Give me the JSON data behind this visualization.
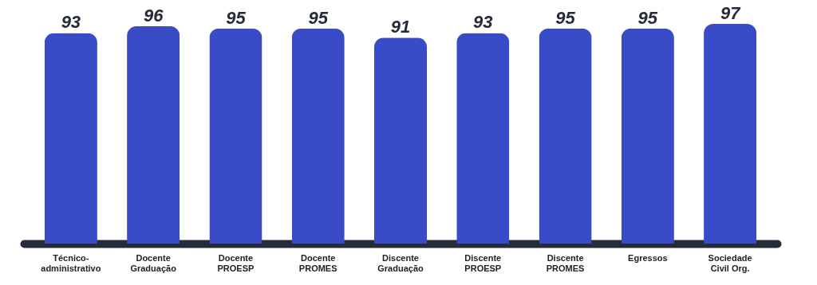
{
  "chart_data": {
    "type": "bar",
    "categories": [
      "Técnico-\nadministrativo",
      "Docente\nGraduação",
      "Docente\nPROESP",
      "Docente\nPROMES",
      "Discente\nGraduação",
      "Discente\nPROESP",
      "Discente\nPROMES",
      "Egressos",
      "Sociedade\nCivil Org."
    ],
    "values": [
      93,
      96,
      95,
      95,
      91,
      93,
      95,
      95,
      97
    ],
    "color": "#3a4bc8",
    "data_labels": true
  }
}
